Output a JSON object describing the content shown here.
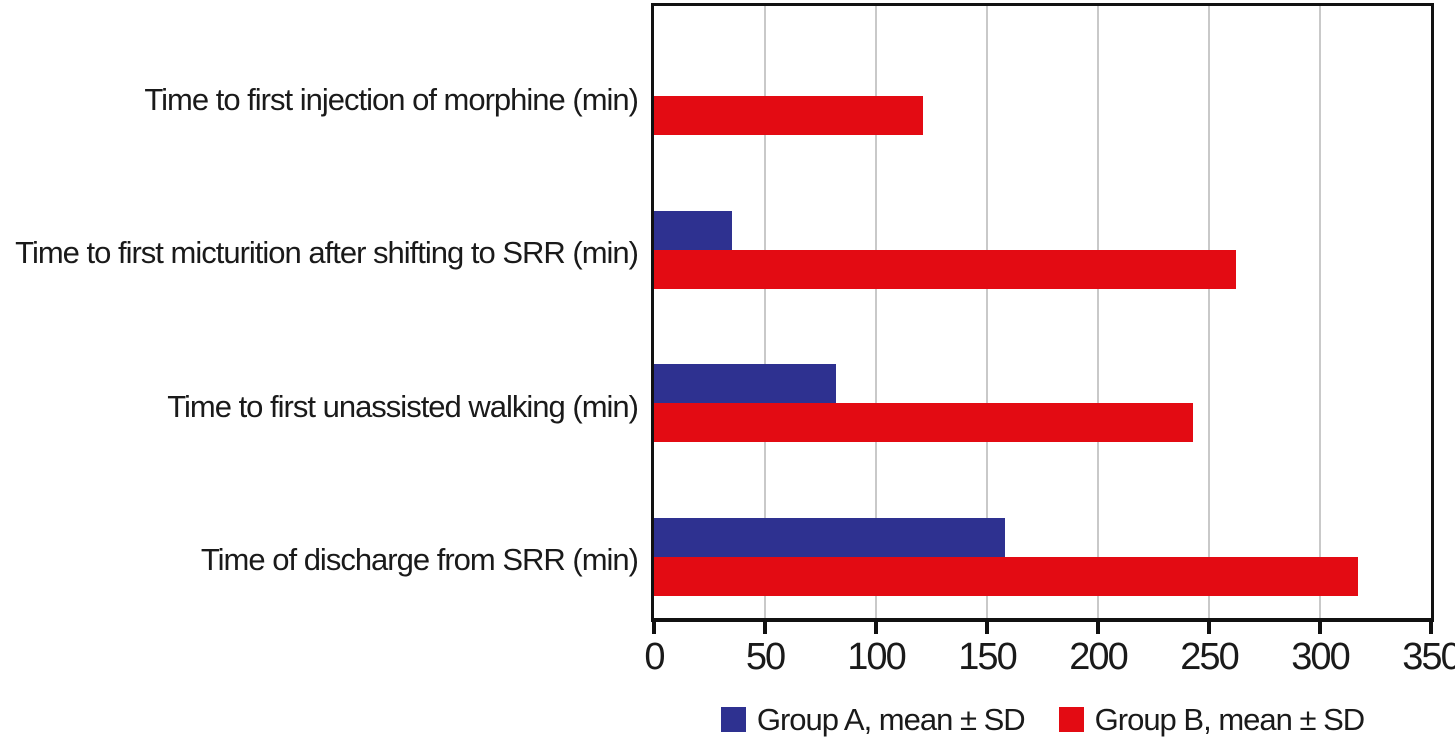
{
  "chart_data": {
    "type": "bar",
    "orientation": "horizontal",
    "title": "",
    "categories": [
      "Time to first injection of morphine (min)",
      "Time to first micturition after shifting to SRR (min)",
      "Time to first unassisted walking (min)",
      "Time of discharge from SRR (min)"
    ],
    "series": [
      {
        "name": "Group A, mean ± SD",
        "color": "#2e3190",
        "values": [
          0,
          35,
          82,
          158
        ]
      },
      {
        "name": "Group B, mean ± SD",
        "color": "#e30b13",
        "values": [
          121,
          262,
          243,
          317
        ]
      }
    ],
    "xlim": [
      0,
      350
    ],
    "xticks": [
      0,
      50,
      100,
      150,
      200,
      250,
      300,
      350
    ],
    "xlabel": "",
    "ylabel": "",
    "grid": "vertical",
    "gridline_color": "#c9c9c9",
    "axis_color": "#111111",
    "text_color": "#1a1a1a",
    "legend_position": "bottom"
  }
}
